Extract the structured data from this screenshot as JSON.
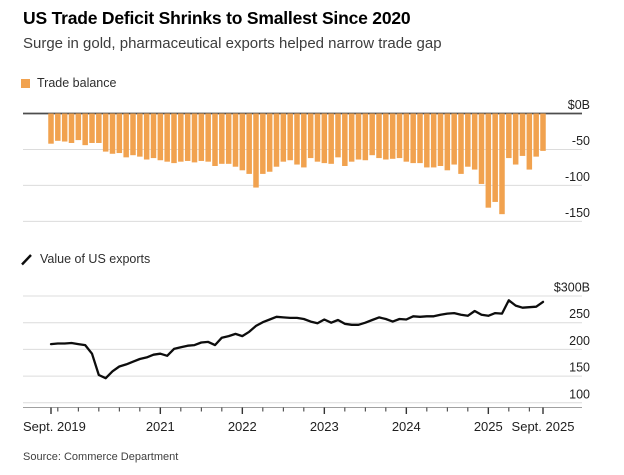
{
  "header": {
    "title": "US Trade Deficit Shrinks to Smallest Since 2020",
    "subtitle": "Surge in gold, pharmaceutical exports helped narrow trade gap"
  },
  "source": "Source: Commerce Department",
  "colors": {
    "bar_orange": "#F1A24F",
    "line_black": "#0d0d0d",
    "gridline": "#dcdcdc",
    "zero_line": "#4d4d4d",
    "axis_line": "#a0a0a0",
    "tick": "#333333",
    "label": "#1f1f1f"
  },
  "chart_data": [
    {
      "type": "bar",
      "name": "trade-balance",
      "legend": "Trade balance",
      "units": "billions of US dollars, monthly",
      "x_start": "Sept. 2019",
      "x_end": "Sept. 2025",
      "frequency": "monthly",
      "ylim": [
        -160,
        0
      ],
      "grid": true,
      "legend_position": "top-left",
      "yticks": [
        {
          "label": "$0B",
          "value": 0
        },
        {
          "label": "-50",
          "value": -50
        },
        {
          "label": "-100",
          "value": -100
        },
        {
          "label": "-150",
          "value": -150
        }
      ],
      "values": [
        -42,
        -38,
        -39,
        -41,
        -37,
        -44,
        -41,
        -41,
        -53,
        -56,
        -55,
        -61,
        -58,
        -60,
        -64,
        -62,
        -65,
        -67,
        -69,
        -67,
        -66,
        -68,
        -66,
        -67,
        -73,
        -70,
        -70,
        -74,
        -79,
        -84,
        -103,
        -84,
        -81,
        -74,
        -67,
        -65,
        -71,
        -75,
        -62,
        -67,
        -69,
        -70,
        -61,
        -73,
        -67,
        -64,
        -65,
        -58,
        -62,
        -64,
        -63,
        -62,
        -67,
        -69,
        -69,
        -75,
        -75,
        -73,
        -79,
        -71,
        -84,
        -74,
        -78,
        -98,
        -131,
        -123,
        -140,
        -62,
        -71,
        -59,
        -78,
        -60,
        -52
      ]
    },
    {
      "type": "line",
      "name": "us-exports",
      "legend": "Value of US exports",
      "units": "billions of US dollars, monthly",
      "x_start": "Sept. 2019",
      "x_end": "Sept. 2025",
      "frequency": "monthly",
      "ylim": [
        100,
        300
      ],
      "grid": true,
      "legend_position": "top-left",
      "yticks": [
        {
          "label": "$300B",
          "value": 300
        },
        {
          "label": "250",
          "value": 250
        },
        {
          "label": "200",
          "value": 200
        },
        {
          "label": "150",
          "value": 150
        },
        {
          "label": "100",
          "value": 100
        }
      ],
      "values": [
        210,
        211,
        211,
        212,
        210,
        208,
        192,
        152,
        146,
        159,
        168,
        172,
        177,
        182,
        185,
        190,
        192,
        188,
        201,
        204,
        207,
        208,
        213,
        214,
        208,
        222,
        225,
        229,
        225,
        233,
        244,
        251,
        256,
        261,
        260,
        259,
        259,
        257,
        252,
        249,
        256,
        250,
        255,
        248,
        246,
        246,
        250,
        255,
        260,
        257,
        252,
        257,
        256,
        262,
        261,
        262,
        262,
        265,
        267,
        268,
        265,
        263,
        272,
        265,
        263,
        268,
        267,
        292,
        282,
        278,
        279,
        280,
        289
      ]
    }
  ],
  "x_axis": {
    "tick_labels": [
      {
        "label": "Sept. 2019",
        "index": 0,
        "align": "left"
      },
      {
        "label": "2021",
        "index": 16,
        "align": "center"
      },
      {
        "label": "2022",
        "index": 28,
        "align": "center"
      },
      {
        "label": "2023",
        "index": 40,
        "align": "center"
      },
      {
        "label": "2024",
        "index": 52,
        "align": "center"
      },
      {
        "label": "2025",
        "index": 64,
        "align": "center"
      },
      {
        "label": "Sept. 2025",
        "index": 72,
        "align": "center"
      }
    ]
  }
}
